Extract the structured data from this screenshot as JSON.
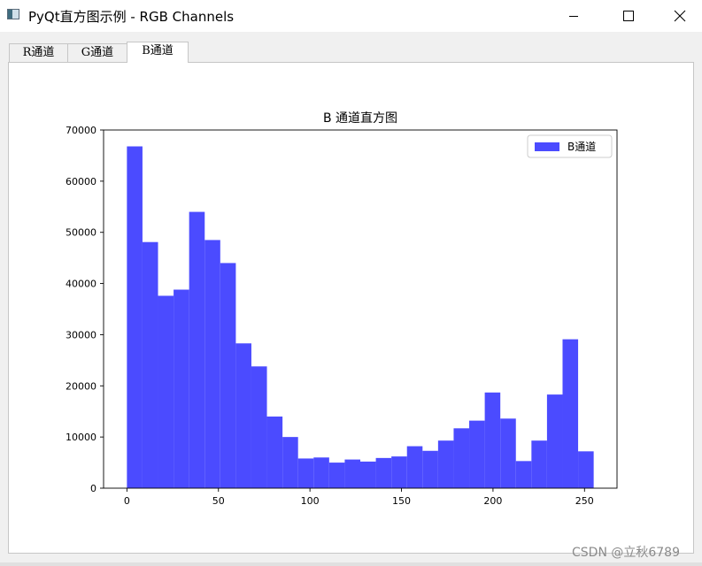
{
  "window": {
    "title": "PyQt直方图示例 - RGB Channels",
    "icon": "window-app-icon",
    "controls": [
      "minimize-icon",
      "maximize-icon",
      "close-icon"
    ]
  },
  "tabs": [
    {
      "label": "R通道",
      "active": false
    },
    {
      "label": "G通道",
      "active": false
    },
    {
      "label": "B通道",
      "active": true
    }
  ],
  "watermark": "CSDN @立秋6789",
  "colors": {
    "bar": "#4b4bff",
    "axis": "#000000",
    "window_bg": "#f0f0f0",
    "panel_bg": "#ffffff"
  },
  "chart_data": {
    "type": "bar",
    "title": "B 通道直方图",
    "xlabel": "",
    "ylabel": "",
    "xlim": [
      -12.75,
      267.75
    ],
    "ylim": [
      0,
      70000
    ],
    "x_ticks": [
      0,
      50,
      100,
      150,
      200,
      250
    ],
    "y_ticks": [
      0,
      10000,
      20000,
      30000,
      40000,
      50000,
      60000,
      70000
    ],
    "grid": false,
    "legend": {
      "position": "top-right",
      "entries": [
        "B通道"
      ]
    },
    "bin_edges": [
      0,
      8.5,
      17,
      25.5,
      34,
      42.5,
      51,
      59.5,
      68,
      76.5,
      85,
      93.5,
      102,
      110.5,
      119,
      127.5,
      136,
      144.5,
      153,
      161.5,
      170,
      178.5,
      187,
      195.5,
      204,
      212.5,
      221,
      229.5,
      238,
      246.5,
      255
    ],
    "series": [
      {
        "name": "B通道",
        "values": [
          66800,
          48100,
          37600,
          38800,
          54000,
          48500,
          44000,
          28300,
          23800,
          14000,
          10000,
          5800,
          6000,
          5000,
          5600,
          5200,
          5900,
          6200,
          8200,
          7300,
          9300,
          11700,
          13200,
          18700,
          13600,
          5300,
          9300,
          18300,
          29100,
          7200
        ]
      }
    ]
  }
}
